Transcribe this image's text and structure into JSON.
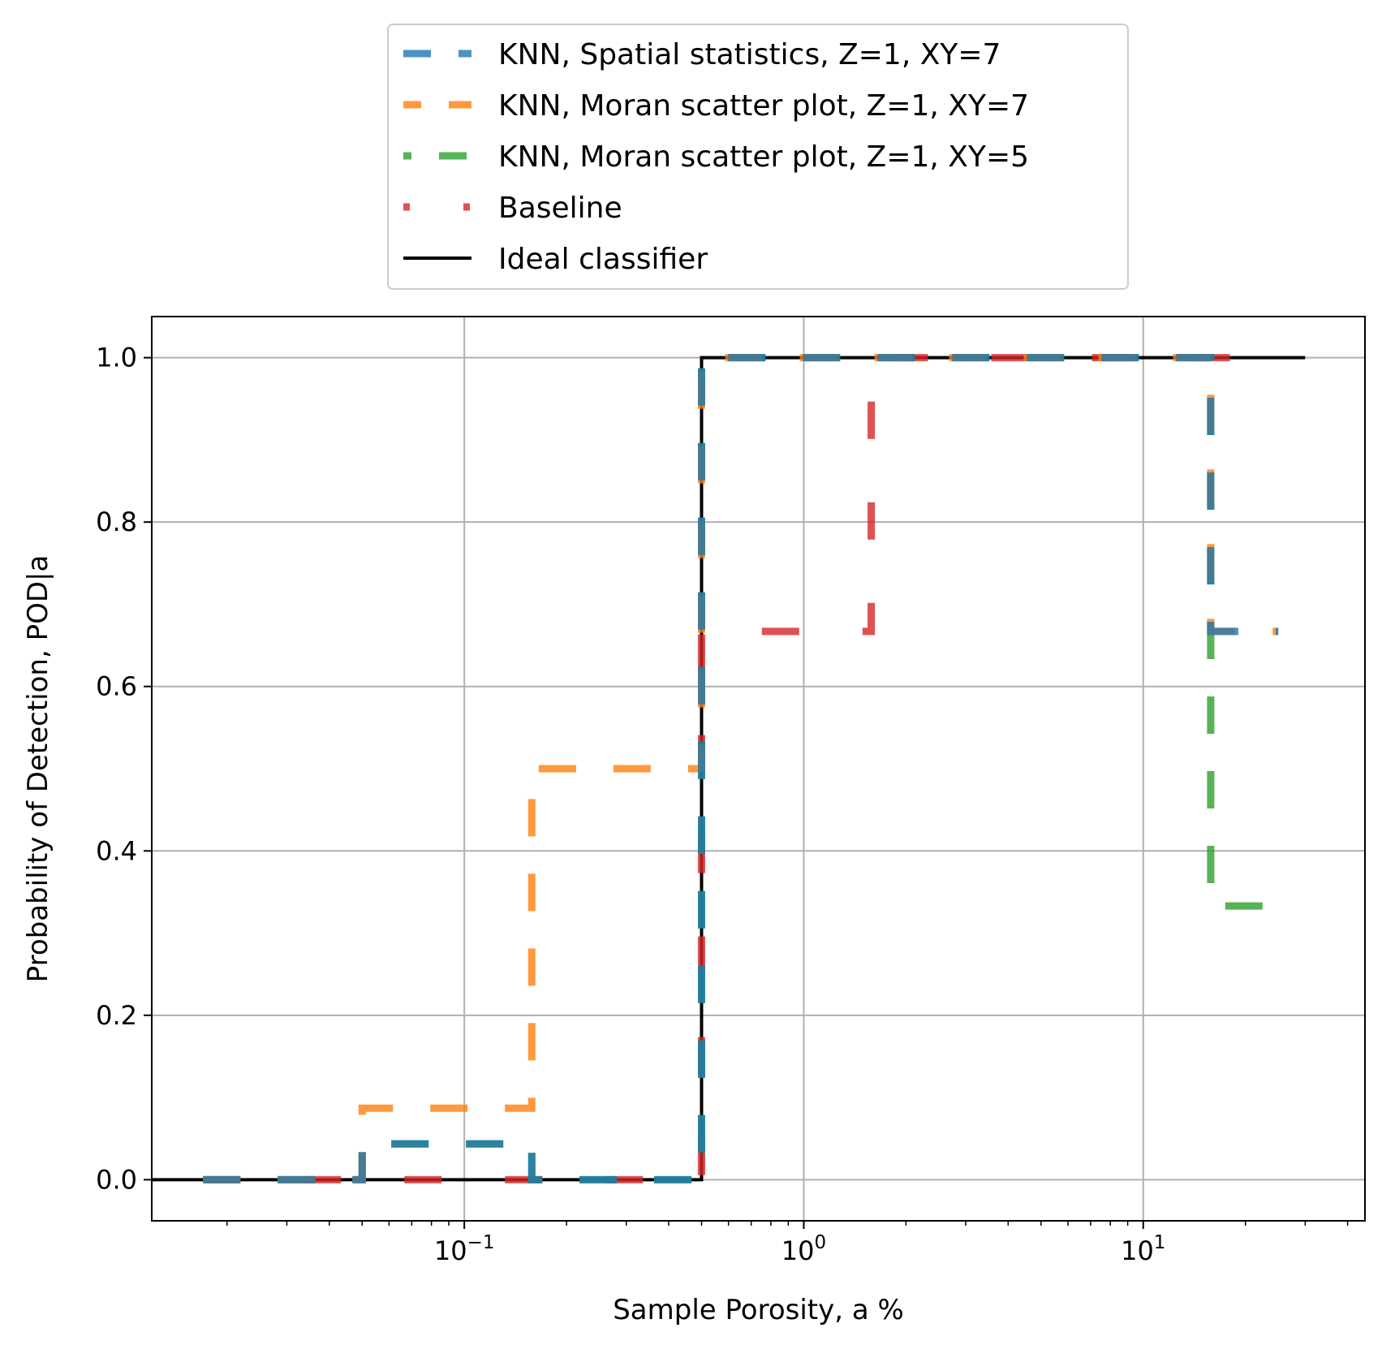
{
  "chart_data": {
    "type": "line",
    "title": "",
    "xlabel": "Sample Porosity, a %",
    "ylabel": "Probability of Detection, POD|a",
    "xscale": "log",
    "xlim": [
      0.012,
      45
    ],
    "ylim": [
      -0.05,
      1.05
    ],
    "grid": true,
    "legend_position": "top-center (outside above plot)",
    "x_ticks": [
      {
        "value": 0.1,
        "base": "10",
        "exp": "−1"
      },
      {
        "value": 1,
        "base": "10",
        "exp": "0"
      },
      {
        "value": 10,
        "base": "10",
        "exp": "1"
      }
    ],
    "y_ticks": [
      {
        "value": 0.0,
        "label": "0.0"
      },
      {
        "value": 0.2,
        "label": "0.2"
      },
      {
        "value": 0.4,
        "label": "0.4"
      },
      {
        "value": 0.6,
        "label": "0.6"
      },
      {
        "value": 0.8,
        "label": "0.8"
      },
      {
        "value": 1.0,
        "label": "1.0"
      }
    ],
    "series": [
      {
        "name": "Ideal classifier",
        "color": "#000000",
        "style": "solid",
        "x": [
          0.012,
          0.5,
          0.5,
          30
        ],
        "y": [
          0.0,
          0.0,
          1.0,
          1.0
        ]
      },
      {
        "name": "Baseline",
        "color": "#d62728",
        "style": "dotted",
        "x": [
          0.017,
          0.5,
          0.5,
          1.58,
          1.58,
          23
        ],
        "y": [
          0.0,
          0.0,
          0.667,
          0.667,
          1.0,
          1.0
        ]
      },
      {
        "name": "KNN, Moran scatter plot, Z=1, XY=5",
        "color": "#2ca02c",
        "style": "dashed",
        "x": [
          0.017,
          0.05,
          0.05,
          0.158,
          0.158,
          0.5,
          0.5,
          15.8,
          15.8,
          25
        ],
        "y": [
          0.0,
          0.0,
          0.0435,
          0.0435,
          0.0,
          0.0,
          1.0,
          1.0,
          0.333,
          0.333
        ]
      },
      {
        "name": "KNN, Moran scatter plot, Z=1, XY=7",
        "color": "#ff7f0e",
        "style": "dashed",
        "x": [
          0.017,
          0.05,
          0.05,
          0.158,
          0.158,
          0.5,
          0.5,
          15.8,
          15.8,
          25
        ],
        "y": [
          0.0,
          0.0,
          0.087,
          0.087,
          0.5,
          0.5,
          1.0,
          1.0,
          0.667,
          0.667
        ]
      },
      {
        "name": "KNN, Spatial statistics, Z=1, XY=7",
        "color": "#1f77b4",
        "style": "dashed",
        "x": [
          0.017,
          0.05,
          0.05,
          0.158,
          0.158,
          0.5,
          0.5,
          15.8,
          15.8,
          25
        ],
        "y": [
          0.0,
          0.0,
          0.0435,
          0.0435,
          0.0,
          0.0,
          1.0,
          1.0,
          0.667,
          0.667
        ]
      }
    ],
    "legend_order": [
      "KNN, Spatial statistics, Z=1, XY=7",
      "KNN, Moran scatter plot, Z=1, XY=7",
      "KNN, Moran scatter plot, Z=1, XY=5",
      "Baseline",
      "Ideal classifier"
    ]
  }
}
